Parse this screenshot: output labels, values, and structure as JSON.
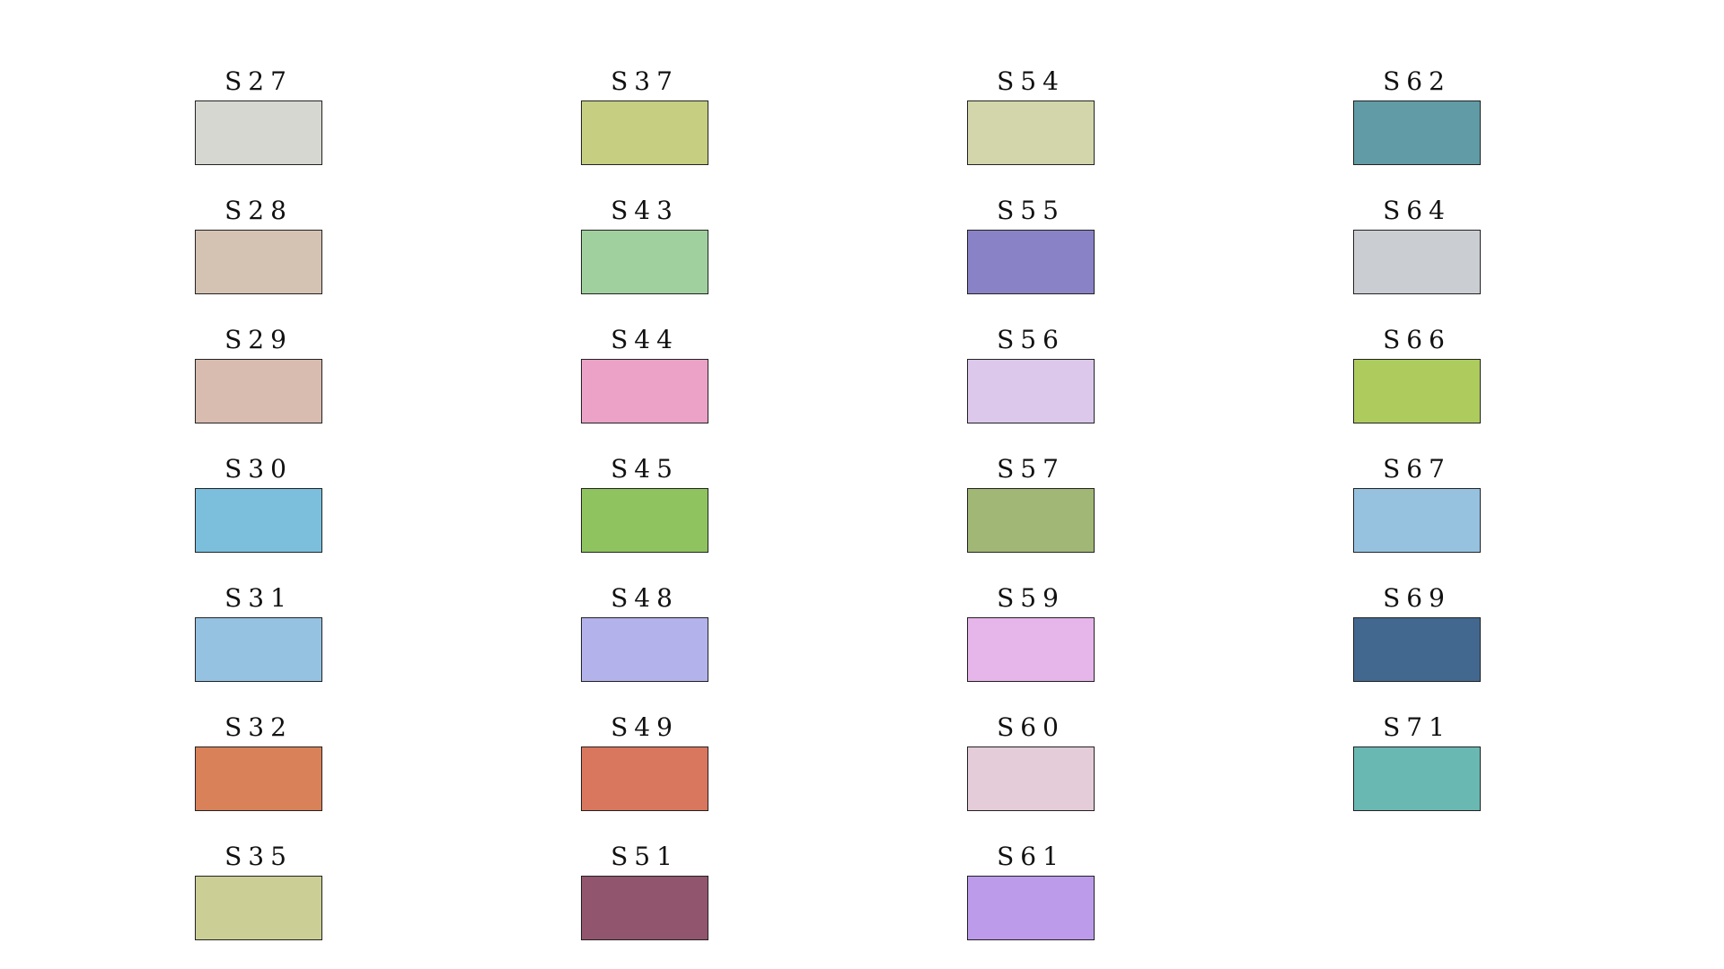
{
  "swatches": [
    {
      "label": "S27",
      "color": "#D6D7D0"
    },
    {
      "label": "S28",
      "color": "#D4C2B3"
    },
    {
      "label": "S29",
      "color": "#D8BCB0"
    },
    {
      "label": "S30",
      "color": "#7BBFDD"
    },
    {
      "label": "S31",
      "color": "#96C2E2"
    },
    {
      "label": "S32",
      "color": "#D98159"
    },
    {
      "label": "S35",
      "color": "#CBCF95"
    },
    {
      "label": "S37",
      "color": "#C5CE81"
    },
    {
      "label": "S43",
      "color": "#A1D09F"
    },
    {
      "label": "S44",
      "color": "#EBA2C6"
    },
    {
      "label": "S45",
      "color": "#8FC360"
    },
    {
      "label": "S48",
      "color": "#B3B2EA"
    },
    {
      "label": "S49",
      "color": "#D8765E"
    },
    {
      "label": "S51",
      "color": "#91556D"
    },
    {
      "label": "S54",
      "color": "#D2D6AA"
    },
    {
      "label": "S55",
      "color": "#8A82C6"
    },
    {
      "label": "S56",
      "color": "#DCC8EB"
    },
    {
      "label": "S57",
      "color": "#A1B776"
    },
    {
      "label": "S59",
      "color": "#E6B5E9"
    },
    {
      "label": "S60",
      "color": "#E4CCD8"
    },
    {
      "label": "S61",
      "color": "#BC9BEA"
    },
    {
      "label": "S62",
      "color": "#609BA6"
    },
    {
      "label": "S64",
      "color": "#CACED2"
    },
    {
      "label": "S66",
      "color": "#AECC5E"
    },
    {
      "label": "S67",
      "color": "#96C2E0"
    },
    {
      "label": "S69",
      "color": "#43688F"
    },
    {
      "label": "S71",
      "color": "#69B9B2"
    }
  ]
}
